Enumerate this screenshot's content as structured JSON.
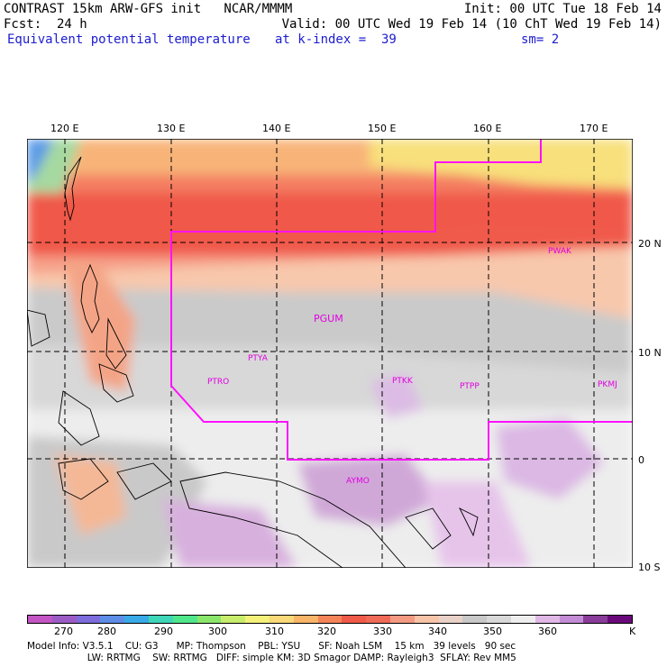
{
  "header": {
    "line1_left": "CONTRAST 15km ARW-GFS init   NCAR/MMMM",
    "line1_right": "Init: 00 UTC Tue 18 Feb 14",
    "line2_left": "Fcst:  24 h",
    "line2_right": "Valid: 00 UTC Wed 19 Feb 14 (10 ChT Wed 19 Feb 14)",
    "line3_left": "Equivalent potential temperature",
    "line3_mid": "at k-index =  39",
    "line3_right": "sm= 2"
  },
  "axes": {
    "lon_labels": [
      "120 E",
      "130 E",
      "140 E",
      "150 E",
      "160 E",
      "170 E"
    ],
    "lat_labels": [
      "20 N",
      "10 N",
      "0",
      "10 S"
    ]
  },
  "stations": [
    "PWAK",
    "PGUM",
    "PTYA",
    "PTRO",
    "PTKK",
    "PTPP",
    "PKMJ",
    "AYMO"
  ],
  "colorbar": {
    "colors": [
      "#c455c4",
      "#9b5cc6",
      "#7c6cdc",
      "#5d8de6",
      "#3aa9e8",
      "#3ed6b8",
      "#4fe68c",
      "#8ae66a",
      "#c8ec6c",
      "#f4f07a",
      "#f8d878",
      "#f8b468",
      "#f48458",
      "#f05a48",
      "#f06a58",
      "#f49a82",
      "#f8c4a8",
      "#e8d2c8",
      "#c8c8c8",
      "#d8d8d8",
      "#eeeeee",
      "#e0b8e6",
      "#c48cd6",
      "#8a3c9a",
      "#6a0a7a"
    ],
    "ticks": [
      "270",
      "280",
      "290",
      "300",
      "310",
      "320",
      "330",
      "340",
      "350",
      "360"
    ],
    "unit": "K"
  },
  "footer": {
    "line1": "Model Info: V3.5.1    CU: G3      MP: Thompson    PBL: YSU      SF: Noah LSM    15 km   39 levels   90 sec",
    "line2": "                    LW: RRTMG    SW: RRTMG   DIFF: simple KM: 3D Smagor DAMP: Rayleigh3  SFLAY: Rev MM5"
  }
}
